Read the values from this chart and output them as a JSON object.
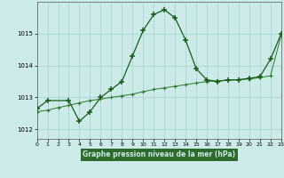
{
  "title": "Graphe pression niveau de la mer (hPa)",
  "bg_color": "#cceae8",
  "plot_bg": "#cceae8",
  "grid_color": "#aad4d2",
  "line_color": "#1a5c1a",
  "line2_color": "#2d7a2d",
  "label_bg": "#2d6b2d",
  "label_fg": "#cceae8",
  "xlim": [
    0,
    23
  ],
  "ylim": [
    1011.7,
    1016.0
  ],
  "yticks": [
    1012,
    1013,
    1014,
    1015
  ],
  "xticks": [
    0,
    1,
    2,
    3,
    4,
    5,
    6,
    7,
    8,
    9,
    10,
    11,
    12,
    13,
    14,
    15,
    16,
    17,
    18,
    19,
    20,
    21,
    22,
    23
  ],
  "series1_x": [
    0,
    1,
    3,
    4,
    5,
    6,
    7,
    8,
    9,
    10,
    11,
    12,
    13,
    14,
    15,
    16,
    17,
    18,
    19,
    20,
    21,
    22,
    23
  ],
  "series1_y": [
    1012.65,
    1012.9,
    1012.9,
    1012.25,
    1012.55,
    1013.0,
    1013.25,
    1013.5,
    1014.3,
    1015.1,
    1015.6,
    1015.75,
    1015.5,
    1014.8,
    1013.9,
    1013.55,
    1013.5,
    1013.55,
    1013.55,
    1013.6,
    1013.65,
    1014.2,
    1015.0
  ],
  "series2_x": [
    0,
    1,
    2,
    3,
    4,
    5,
    6,
    7,
    8,
    9,
    10,
    11,
    12,
    13,
    14,
    15,
    16,
    17,
    18,
    19,
    20,
    21,
    22,
    23
  ],
  "series2_y": [
    1012.55,
    1012.6,
    1012.68,
    1012.75,
    1012.83,
    1012.9,
    1012.95,
    1013.0,
    1013.05,
    1013.1,
    1013.18,
    1013.25,
    1013.3,
    1013.35,
    1013.4,
    1013.45,
    1013.5,
    1013.52,
    1013.54,
    1013.56,
    1013.58,
    1013.62,
    1013.68,
    1014.95
  ]
}
